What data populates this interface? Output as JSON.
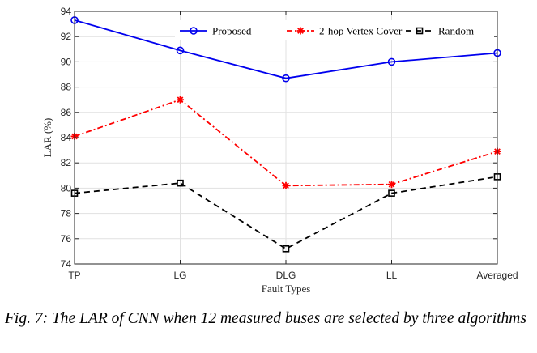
{
  "chart_data": {
    "type": "line",
    "categories": [
      "TP",
      "LG",
      "DLG",
      "LL",
      "Averaged"
    ],
    "xlabel": "Fault Types",
    "ylabel": "LAR (%)",
    "ylim": [
      74,
      94
    ],
    "yticks": [
      74,
      76,
      78,
      80,
      82,
      84,
      86,
      88,
      90,
      92,
      94
    ],
    "grid": true,
    "legend_position": "top-right",
    "series": [
      {
        "name": "Proposed",
        "values": [
          93.3,
          90.9,
          88.7,
          90.0,
          90.7
        ],
        "color": "#0000ee",
        "marker": "circle",
        "dash": "solid"
      },
      {
        "name": "2-hop Vertex Cover",
        "values": [
          84.1,
          87.0,
          80.2,
          80.3,
          82.9
        ],
        "color": "#ff0000",
        "marker": "star",
        "dash": "dashdot"
      },
      {
        "name": "Random",
        "values": [
          79.6,
          80.4,
          75.2,
          79.6,
          80.9
        ],
        "color": "#000000",
        "marker": "square",
        "dash": "dashed"
      }
    ]
  },
  "caption": "Fig. 7: The LAR of CNN when 12 measured buses are selected by three algorithms"
}
